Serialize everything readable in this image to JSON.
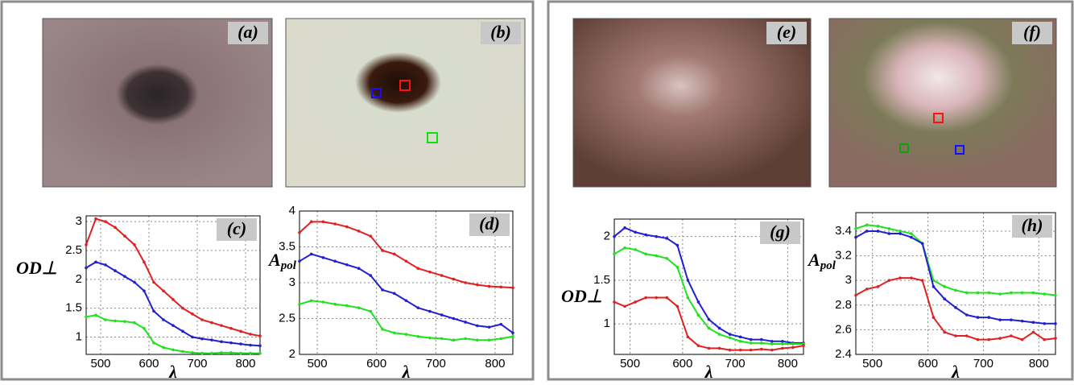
{
  "images": [
    {
      "label": "(a)"
    },
    {
      "label": "(b)"
    },
    {
      "label": "(e)"
    },
    {
      "label": "(f)"
    }
  ],
  "chart_data": [
    {
      "type": "line",
      "label": "(c)",
      "x_label": "λ",
      "y_label": "OD⊥",
      "grid": true,
      "x": [
        470,
        490,
        510,
        530,
        550,
        570,
        590,
        610,
        630,
        650,
        670,
        690,
        710,
        730,
        750,
        770,
        790,
        810,
        830
      ],
      "xlim": [
        470,
        830
      ],
      "xticks": [
        500,
        600,
        700,
        800
      ],
      "ylim": [
        0.7,
        3.1
      ],
      "yticks": [
        1,
        1.5,
        2,
        2.5,
        3
      ],
      "series": [
        {
          "color": "#e02020",
          "values": [
            2.6,
            3.05,
            3.0,
            2.9,
            2.75,
            2.6,
            2.3,
            1.95,
            1.8,
            1.65,
            1.5,
            1.4,
            1.3,
            1.25,
            1.2,
            1.15,
            1.1,
            1.05,
            1.02
          ]
        },
        {
          "color": "#2020d0",
          "values": [
            2.2,
            2.3,
            2.25,
            2.15,
            2.05,
            1.95,
            1.8,
            1.45,
            1.3,
            1.2,
            1.1,
            1.0,
            0.97,
            0.95,
            0.92,
            0.9,
            0.88,
            0.86,
            0.85
          ]
        },
        {
          "color": "#20e020",
          "values": [
            1.35,
            1.38,
            1.3,
            1.28,
            1.27,
            1.25,
            1.15,
            0.9,
            0.82,
            0.78,
            0.75,
            0.73,
            0.72,
            0.72,
            0.73,
            0.73,
            0.72,
            0.72,
            0.72
          ]
        }
      ]
    },
    {
      "type": "line",
      "label": "(d)",
      "x_label": "λ",
      "y_label": "A",
      "y_label_subscript": "pol",
      "grid": true,
      "x": [
        470,
        490,
        510,
        530,
        550,
        570,
        590,
        610,
        630,
        650,
        670,
        690,
        710,
        730,
        750,
        770,
        790,
        810,
        830
      ],
      "xlim": [
        470,
        830
      ],
      "xticks": [
        500,
        600,
        700,
        800
      ],
      "ylim": [
        2,
        4
      ],
      "yticks": [
        2,
        2.5,
        3,
        3.5,
        4
      ],
      "series": [
        {
          "color": "#e02020",
          "values": [
            3.7,
            3.85,
            3.85,
            3.82,
            3.78,
            3.72,
            3.65,
            3.45,
            3.4,
            3.3,
            3.2,
            3.15,
            3.1,
            3.05,
            3.0,
            2.97,
            2.95,
            2.94,
            2.93
          ]
        },
        {
          "color": "#2020d0",
          "values": [
            3.3,
            3.4,
            3.35,
            3.3,
            3.25,
            3.2,
            3.1,
            2.9,
            2.85,
            2.75,
            2.65,
            2.6,
            2.55,
            2.5,
            2.45,
            2.4,
            2.38,
            2.42,
            2.3
          ]
        },
        {
          "color": "#20e020",
          "values": [
            2.7,
            2.75,
            2.73,
            2.7,
            2.68,
            2.65,
            2.6,
            2.35,
            2.3,
            2.28,
            2.25,
            2.23,
            2.22,
            2.2,
            2.22,
            2.2,
            2.2,
            2.22,
            2.25
          ]
        }
      ]
    },
    {
      "type": "line",
      "label": "(g)",
      "x_label": "λ",
      "y_label": "OD⊥",
      "grid": true,
      "x": [
        470,
        490,
        510,
        530,
        550,
        570,
        590,
        610,
        630,
        650,
        670,
        690,
        710,
        730,
        750,
        770,
        790,
        810,
        830
      ],
      "xlim": [
        470,
        830
      ],
      "xticks": [
        500,
        600,
        700,
        800
      ],
      "ylim": [
        0.65,
        2.2
      ],
      "yticks": [
        1,
        1.5,
        2
      ],
      "series": [
        {
          "color": "#2020d0",
          "values": [
            2.0,
            2.1,
            2.05,
            2.02,
            2.0,
            1.98,
            1.9,
            1.5,
            1.25,
            1.05,
            0.95,
            0.88,
            0.85,
            0.82,
            0.82,
            0.8,
            0.8,
            0.78,
            0.78
          ]
        },
        {
          "color": "#20e020",
          "values": [
            1.8,
            1.87,
            1.85,
            1.8,
            1.78,
            1.75,
            1.65,
            1.3,
            1.1,
            0.95,
            0.88,
            0.84,
            0.8,
            0.78,
            0.78,
            0.77,
            0.77,
            0.77,
            0.77
          ]
        },
        {
          "color": "#e02020",
          "values": [
            1.25,
            1.2,
            1.25,
            1.3,
            1.3,
            1.3,
            1.2,
            0.85,
            0.75,
            0.72,
            0.72,
            0.7,
            0.7,
            0.7,
            0.71,
            0.7,
            0.72,
            0.73,
            0.75
          ]
        }
      ]
    },
    {
      "type": "line",
      "label": "(h)",
      "x_label": "λ",
      "y_label": "A",
      "y_label_subscript": "pol",
      "grid": true,
      "x": [
        470,
        490,
        510,
        530,
        550,
        570,
        590,
        610,
        630,
        650,
        670,
        690,
        710,
        730,
        750,
        770,
        790,
        810,
        830
      ],
      "xlim": [
        470,
        830
      ],
      "xticks": [
        500,
        600,
        700,
        800
      ],
      "ylim": [
        2.4,
        3.55
      ],
      "yticks": [
        2.4,
        2.6,
        2.8,
        3,
        3.2,
        3.4
      ],
      "series": [
        {
          "color": "#20e020",
          "values": [
            3.42,
            3.45,
            3.44,
            3.42,
            3.4,
            3.38,
            3.3,
            3.0,
            2.95,
            2.92,
            2.9,
            2.9,
            2.9,
            2.89,
            2.9,
            2.9,
            2.9,
            2.89,
            2.88
          ]
        },
        {
          "color": "#2020d0",
          "values": [
            3.35,
            3.4,
            3.4,
            3.38,
            3.38,
            3.35,
            3.3,
            2.95,
            2.85,
            2.78,
            2.72,
            2.7,
            2.7,
            2.68,
            2.68,
            2.67,
            2.66,
            2.65,
            2.65
          ]
        },
        {
          "color": "#e02020",
          "values": [
            2.88,
            2.93,
            2.95,
            3.0,
            3.02,
            3.02,
            3.0,
            2.7,
            2.58,
            2.55,
            2.55,
            2.52,
            2.52,
            2.53,
            2.55,
            2.52,
            2.58,
            2.52,
            2.53
          ]
        }
      ]
    }
  ]
}
